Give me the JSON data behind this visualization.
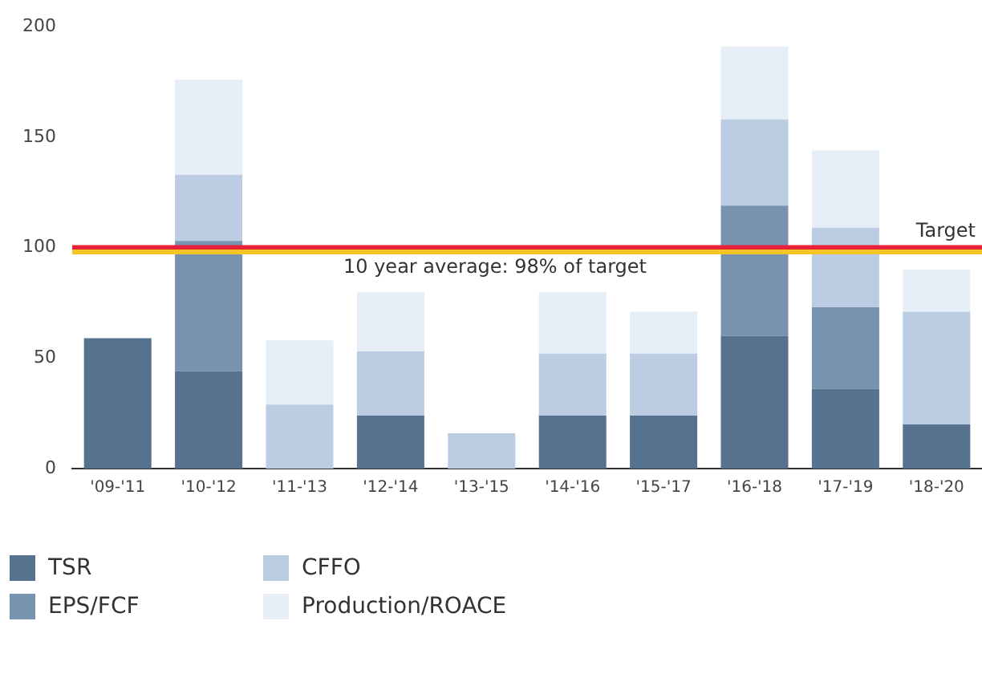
{
  "chart_data": {
    "type": "bar",
    "stacked": true,
    "categories": [
      "'09-'11",
      "'10-'12",
      "'11-'13",
      "'12-'14",
      "'13-'15",
      "'14-'16",
      "'15-'17",
      "'16-'18",
      "'17-'19",
      "'18-'20"
    ],
    "series": [
      {
        "name": "TSR",
        "color": "#56728f",
        "values": [
          59,
          44,
          0,
          24,
          0,
          24,
          24,
          60,
          36,
          20
        ]
      },
      {
        "name": "EPS/FCF",
        "color": "#7893b0",
        "values": [
          0,
          59,
          0,
          0,
          0,
          0,
          0,
          59,
          37,
          0
        ]
      },
      {
        "name": "CFFO",
        "color": "#bccde3",
        "values": [
          0,
          30,
          29,
          29,
          16,
          28,
          28,
          39,
          36,
          51
        ]
      },
      {
        "name": "Production/ROACE",
        "color": "#e6eef8",
        "values": [
          0,
          43,
          29,
          27,
          0,
          28,
          19,
          33,
          35,
          19
        ]
      }
    ],
    "ylim": [
      0,
      200
    ],
    "yticks": [
      0,
      50,
      100,
      150,
      200
    ],
    "grid": false,
    "legend": "bottom",
    "ref_lines": [
      {
        "axis": "y",
        "value": 100,
        "label": "Target",
        "color": "#e8203a"
      },
      {
        "axis": "y",
        "value": 98,
        "label": "10 year average: 98% of target",
        "color": "#f3c623"
      }
    ]
  }
}
